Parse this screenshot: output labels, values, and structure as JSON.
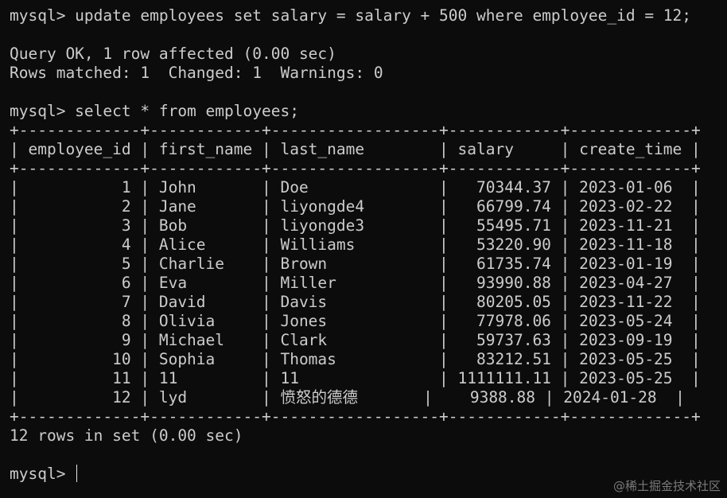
{
  "terminal": {
    "colors": {
      "background": "#0c0c0c",
      "foreground": "#cccccc"
    },
    "lines": [
      "mysql> update employees set salary = salary + 500 where employee_id = 12;",
      "",
      "Query OK, 1 row affected (0.00 sec)",
      "Rows matched: 1  Changed: 1  Warnings: 0",
      "",
      "mysql> select * from employees;",
      "+-------------+------------+------------------+------------+-------------+",
      "| employee_id | first_name | last_name        | salary     | create_time |",
      "+-------------+------------+------------------+------------+-------------+",
      "|           1 | John       | Doe              |   70344.37 | 2023-01-06  |",
      "|           2 | Jane       | liyongde4        |   66799.74 | 2023-02-22  |",
      "|           3 | Bob        | liyongde3        |   55495.71 | 2023-11-21  |",
      "|           4 | Alice      | Williams         |   53220.90 | 2023-11-18  |",
      "|           5 | Charlie    | Brown            |   61735.74 | 2023-01-19  |",
      "|           6 | Eva        | Miller           |   93990.88 | 2023-04-27  |",
      "|           7 | David      | Davis            |   80205.05 | 2023-11-22  |",
      "|           8 | Olivia     | Jones            |   77978.06 | 2023-05-24  |",
      "|           9 | Michael    | Clark            |   59737.63 | 2023-09-19  |",
      "|          10 | Sophia     | Thomas           |   83212.51 | 2023-05-25  |",
      "|          11 | 11         | 11               | 1111111.11 | 2023-05-25  |",
      "|          12 | lyd        | 愤怒的德德       |    9388.88 | 2024-01-28  |",
      "+-------------+------------+------------------+------------+-------------+",
      "12 rows in set (0.00 sec)",
      "",
      "mysql> "
    ],
    "watermark": "@稀土掘金技术社区"
  }
}
